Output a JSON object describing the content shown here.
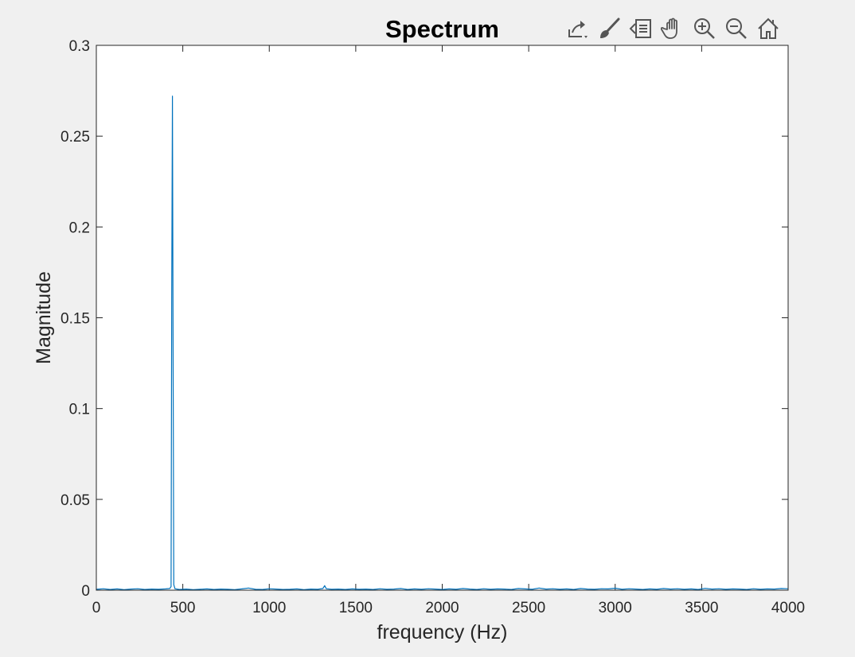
{
  "toolbar": {
    "icons": [
      "export-icon",
      "brush-icon",
      "legend-icon",
      "pan-icon",
      "zoom-in-icon",
      "zoom-out-icon",
      "home-icon"
    ]
  },
  "colors": {
    "background": "#f0f0f0",
    "axes_background": "#ffffff",
    "axis": "#262626",
    "series": "#0072bd",
    "series_noise": "#1a5e60"
  },
  "chart_data": {
    "type": "line",
    "title": "Spectrum",
    "xlabel": "frequency (Hz)",
    "ylabel": "Magnitude",
    "xlim": [
      0,
      4000
    ],
    "ylim": [
      0,
      0.3
    ],
    "xticks": [
      0,
      500,
      1000,
      1500,
      2000,
      2500,
      3000,
      3500,
      4000
    ],
    "xtick_labels": [
      "0",
      "500",
      "1000",
      "1500",
      "2000",
      "2500",
      "3000",
      "3500",
      "4000"
    ],
    "yticks": [
      0,
      0.05,
      0.1,
      0.15,
      0.2,
      0.25,
      0.3
    ],
    "ytick_labels": [
      "0",
      "0.05",
      "0.1",
      "0.15",
      "0.2",
      "0.25",
      "0.3"
    ],
    "grid": false,
    "series": [
      {
        "x": [
          0,
          40,
          80,
          120,
          160,
          200,
          240,
          280,
          320,
          360,
          400,
          425,
          432,
          436,
          440,
          444,
          448,
          455,
          480,
          520,
          560,
          600,
          640,
          680,
          720,
          760,
          800,
          840,
          880,
          920,
          960,
          1000,
          1040,
          1080,
          1120,
          1160,
          1200,
          1240,
          1280,
          1310,
          1320,
          1330,
          1360,
          1400,
          1440,
          1480,
          1520,
          1560,
          1600,
          1640,
          1680,
          1720,
          1760,
          1800,
          1840,
          1880,
          1920,
          1960,
          2000,
          2040,
          2080,
          2120,
          2160,
          2200,
          2240,
          2280,
          2320,
          2360,
          2400,
          2440,
          2480,
          2520,
          2560,
          2600,
          2640,
          2680,
          2720,
          2760,
          2800,
          2840,
          2880,
          2920,
          2960,
          3000,
          3040,
          3080,
          3120,
          3160,
          3200,
          3240,
          3280,
          3320,
          3360,
          3400,
          3440,
          3480,
          3520,
          3560,
          3600,
          3640,
          3680,
          3720,
          3760,
          3800,
          3840,
          3880,
          3920,
          3960,
          4000
        ],
        "y": [
          0.0005,
          0.0008,
          0.0004,
          0.0007,
          0.0003,
          0.0006,
          0.0008,
          0.0004,
          0.0006,
          0.0005,
          0.0007,
          0.0009,
          0.002,
          0.16,
          0.272,
          0.12,
          0.003,
          0.0008,
          0.0004,
          0.0006,
          0.0003,
          0.0005,
          0.0007,
          0.0004,
          0.0006,
          0.0005,
          0.0003,
          0.0007,
          0.0012,
          0.0005,
          0.0004,
          0.0008,
          0.0006,
          0.0004,
          0.0005,
          0.0007,
          0.0003,
          0.0006,
          0.0005,
          0.0009,
          0.0025,
          0.0008,
          0.0005,
          0.0006,
          0.0004,
          0.0007,
          0.0005,
          0.0006,
          0.0004,
          0.0008,
          0.0005,
          0.0006,
          0.0009,
          0.0004,
          0.0007,
          0.0005,
          0.0008,
          0.0006,
          0.0004,
          0.0007,
          0.0005,
          0.0009,
          0.0006,
          0.0004,
          0.0008,
          0.0005,
          0.0007,
          0.0006,
          0.0004,
          0.0009,
          0.0007,
          0.0005,
          0.0012,
          0.0006,
          0.0008,
          0.0005,
          0.0007,
          0.0004,
          0.0009,
          0.0006,
          0.0005,
          0.0008,
          0.0007,
          0.0011,
          0.0005,
          0.0008,
          0.0006,
          0.0004,
          0.0007,
          0.0005,
          0.0009,
          0.0006,
          0.0008,
          0.0005,
          0.0007,
          0.0004,
          0.001,
          0.0006,
          0.0008,
          0.0005,
          0.0007,
          0.0006,
          0.0004,
          0.0008,
          0.0005,
          0.0007,
          0.0006,
          0.0009,
          0.0008
        ]
      }
    ]
  }
}
